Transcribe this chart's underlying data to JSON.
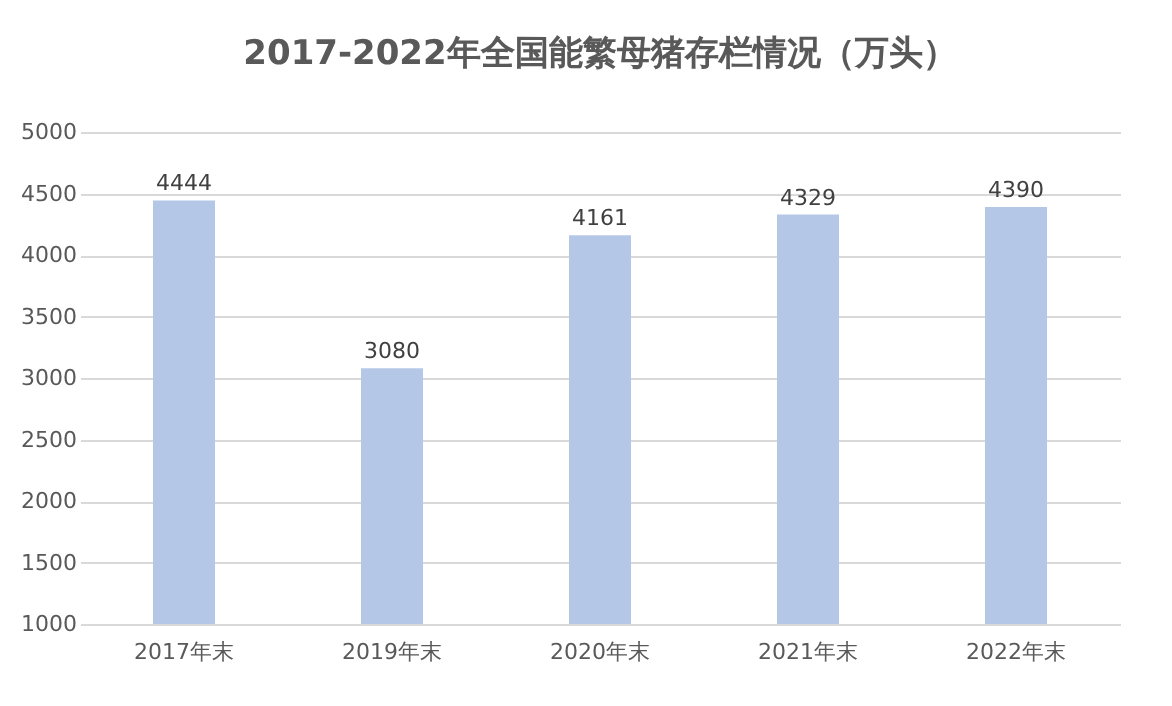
{
  "chart_data": {
    "type": "bar",
    "title": "2017-2022年全国能繁母猪存栏情况（万头）",
    "categories": [
      "2017年末",
      "2019年末",
      "2020年末",
      "2021年末",
      "2022年末"
    ],
    "values": [
      4444,
      3080,
      4161,
      4329,
      4390
    ],
    "color": "#b4c7e7",
    "ylim": [
      1000,
      5000
    ],
    "yticks": [
      1000,
      1500,
      2000,
      2500,
      3000,
      3500,
      4000,
      4500,
      5000
    ],
    "grid": "y",
    "data_labels": true
  }
}
